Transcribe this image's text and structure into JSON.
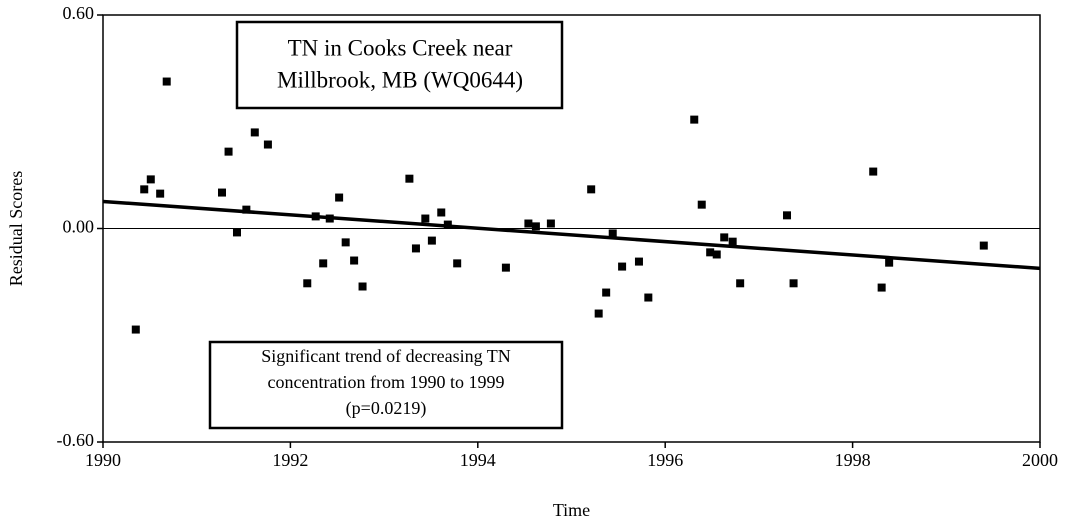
{
  "chart_data": {
    "type": "scatter",
    "title_lines": [
      "TN in Cooks Creek near",
      "Millbrook, MB (WQ0644)"
    ],
    "annotation_lines": [
      "Significant trend of decreasing TN",
      "concentration from 1990 to 1999",
      "(p=0.0219)"
    ],
    "x_label": "Time",
    "y_label": "Residual Scores",
    "xlim": [
      1990,
      2000
    ],
    "ylim": [
      -0.6,
      0.6
    ],
    "xticks": [
      1990,
      1992,
      1994,
      1996,
      1998,
      2000
    ],
    "yticks": [
      {
        "value": -0.6,
        "label": "-0.60"
      },
      {
        "value": 0,
        "label": "0.00"
      },
      {
        "value": 0.6,
        "label": "0.60"
      }
    ],
    "color": "#000000",
    "x": [
      1990.35,
      1990.44,
      1990.51,
      1990.61,
      1990.68,
      1991.27,
      1991.34,
      1991.43,
      1991.53,
      1991.62,
      1991.76,
      1992.18,
      1992.27,
      1992.35,
      1992.42,
      1992.52,
      1992.59,
      1992.68,
      1992.77,
      1993.27,
      1993.34,
      1993.44,
      1993.51,
      1993.61,
      1993.68,
      1993.78,
      1994.3,
      1994.54,
      1994.62,
      1994.78,
      1995.21,
      1995.29,
      1995.37,
      1995.44,
      1995.54,
      1995.72,
      1995.82,
      1996.31,
      1996.39,
      1996.48,
      1996.55,
      1996.63,
      1996.72,
      1996.8,
      1997.3,
      1997.37,
      1998.22,
      1998.31,
      1998.39,
      1999.4
    ],
    "values": [
      -0.284,
      0.11,
      0.138,
      0.098,
      0.413,
      0.101,
      0.216,
      -0.011,
      0.053,
      0.27,
      0.236,
      -0.154,
      0.034,
      -0.098,
      0.028,
      0.087,
      -0.039,
      -0.09,
      -0.163,
      0.14,
      -0.056,
      0.028,
      -0.034,
      0.045,
      0.011,
      -0.098,
      -0.11,
      0.014,
      0.006,
      0.014,
      0.11,
      -0.239,
      -0.18,
      -0.014,
      -0.107,
      -0.093,
      -0.194,
      0.306,
      0.067,
      -0.067,
      -0.073,
      -0.025,
      -0.037,
      -0.154,
      0.037,
      -0.154,
      0.16,
      -0.166,
      -0.096,
      -0.048
    ],
    "trend": {
      "x": [
        1990,
        2000
      ],
      "values": [
        0.076,
        -0.112
      ]
    }
  }
}
